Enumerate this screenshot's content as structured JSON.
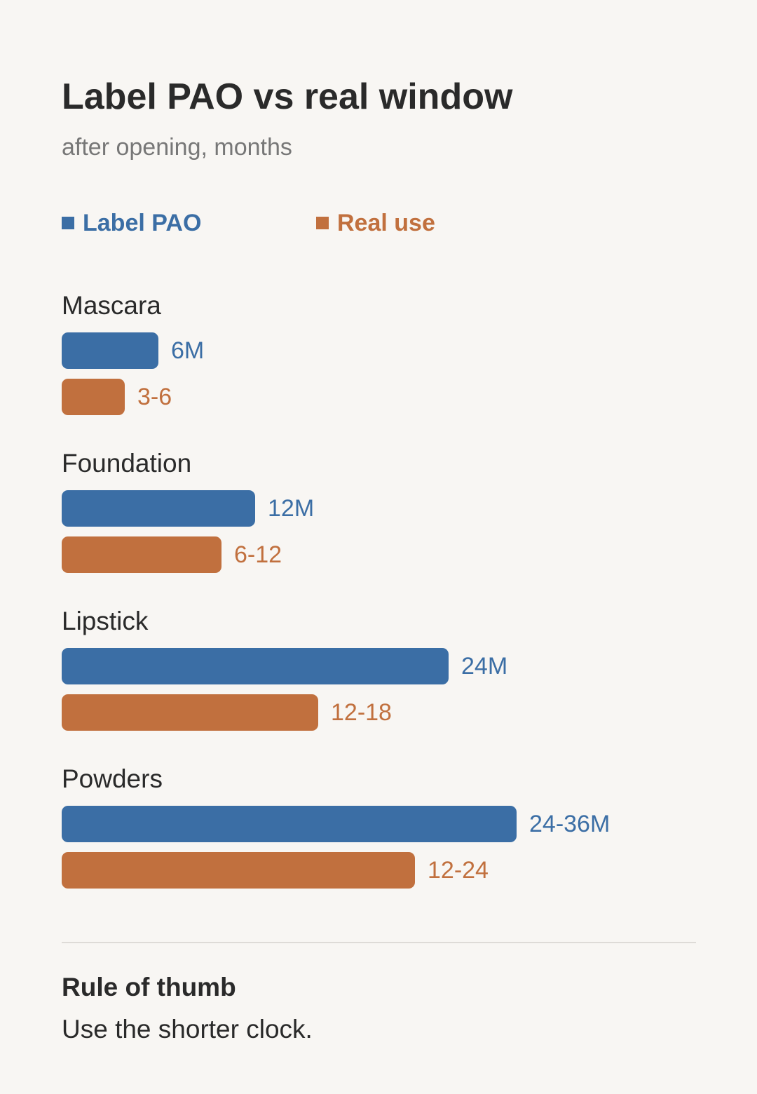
{
  "chart_data": {
    "type": "bar",
    "orientation": "horizontal",
    "title": "Label PAO vs real window",
    "subtitle": "after opening, months",
    "legend_position": "top-left",
    "grid": false,
    "xlim": [
      0,
      36
    ],
    "categories": [
      "Mascara",
      "Foundation",
      "Lipstick",
      "Powders"
    ],
    "series": [
      {
        "name": "Label PAO",
        "color": "#3b6ea5",
        "values": [
          6,
          12,
          24,
          28.2
        ],
        "labels": [
          "6M",
          "12M",
          "24M",
          "24-36M"
        ]
      },
      {
        "name": "Real use",
        "color": "#c1703e",
        "values": [
          3.9,
          9.9,
          15.9,
          21.9
        ],
        "labels": [
          "3-6",
          "6-12",
          "12-18",
          "12-24"
        ]
      }
    ]
  },
  "note": {
    "title": "Rule of thumb",
    "text": "Use the shorter clock."
  }
}
